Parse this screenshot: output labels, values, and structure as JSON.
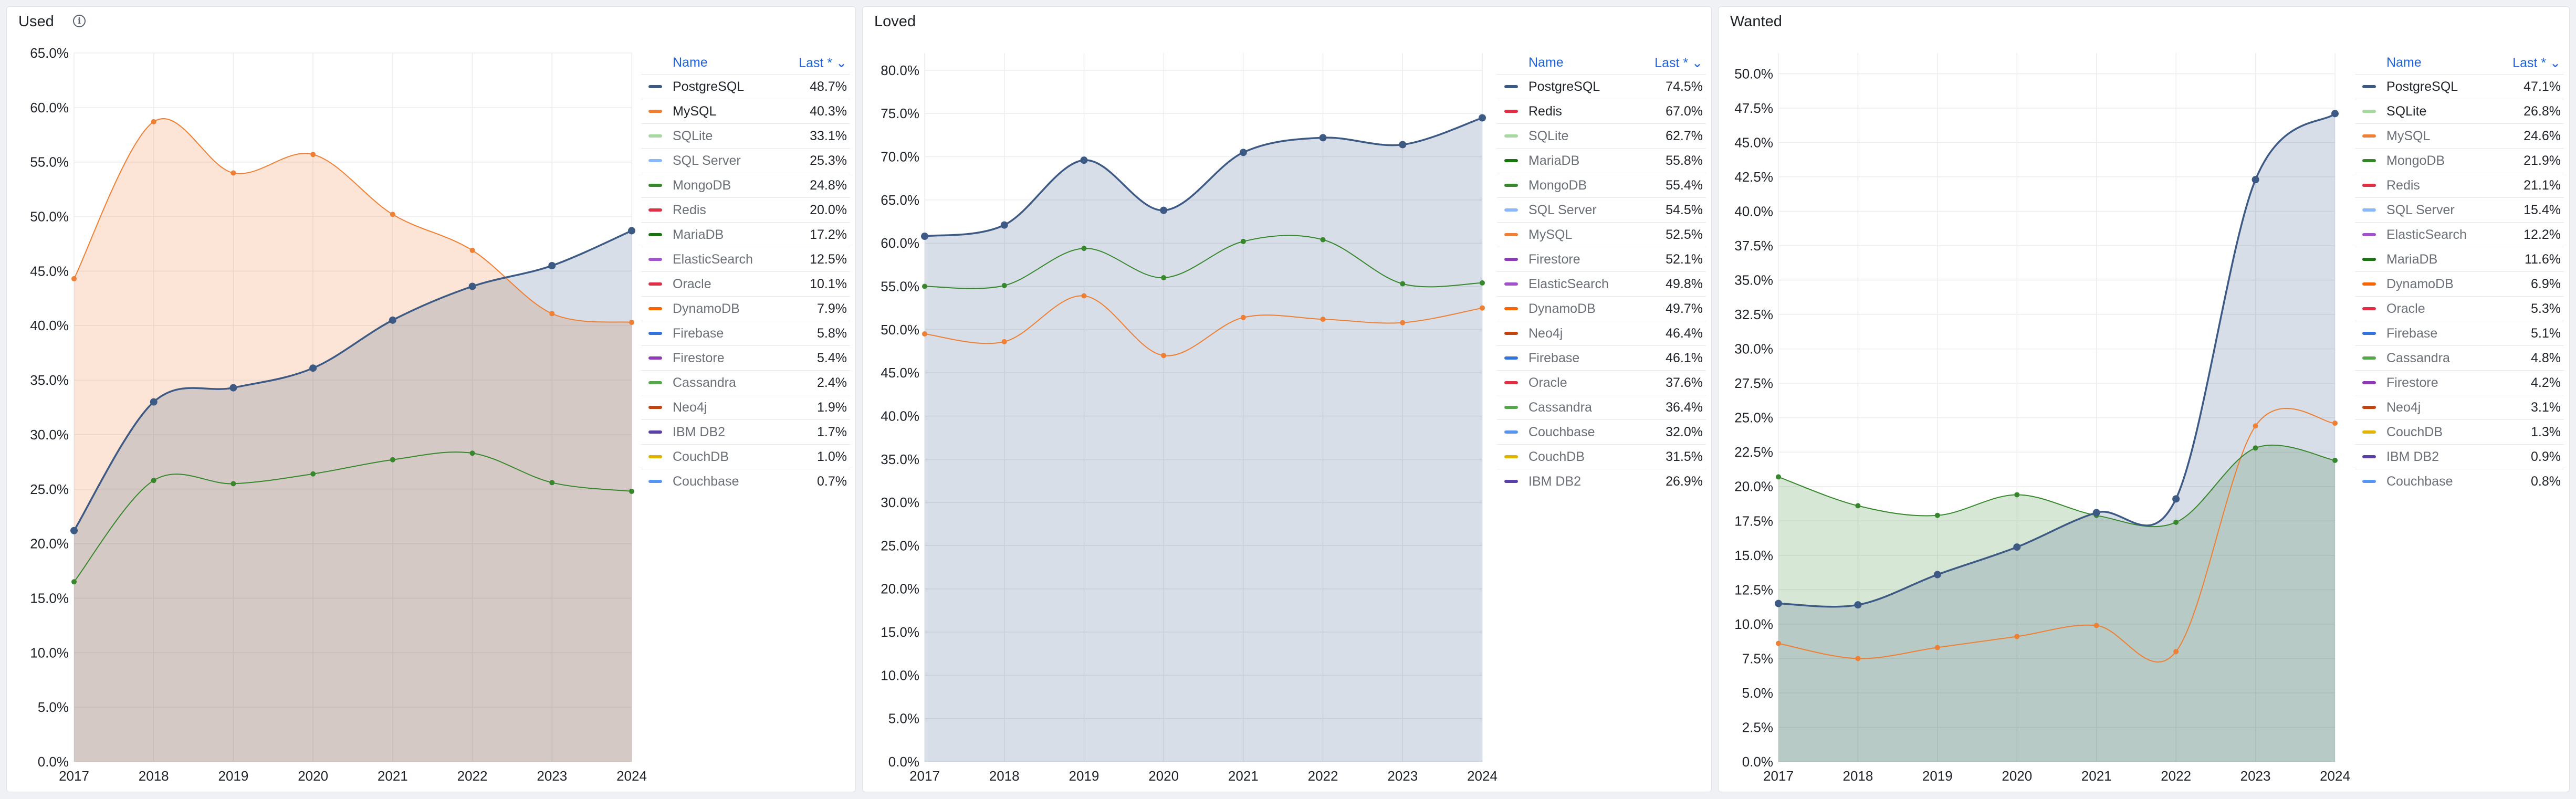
{
  "legend_header": {
    "name": "Name",
    "last": "Last * ⌄"
  },
  "colors": {
    "PostgreSQL": "#3d5a85",
    "MySQL": "#ef7f32",
    "SQLite": "#a6d9a0",
    "SQL Server": "#8ab8ff",
    "MongoDB": "#37872d",
    "Redis": "#e02f44",
    "MariaDB": "#19730e",
    "ElasticSearch": "#a352cc",
    "Oracle": "#e02f44",
    "DynamoDB": "#fa6400",
    "Firebase": "#3274d9",
    "Firestore": "#8f3bb8",
    "Cassandra": "#56a64b",
    "Neo4j": "#c4440f",
    "IBM DB2": "#5a3fa6",
    "CouchDB": "#e0b400",
    "Couchbase": "#5794f2"
  },
  "panels": [
    {
      "title": "Used",
      "legend": [
        {
          "name": "PostgreSQL",
          "value": "48.7%"
        },
        {
          "name": "MySQL",
          "value": "40.3%"
        },
        {
          "name": "SQLite",
          "value": "33.1%"
        },
        {
          "name": "SQL Server",
          "value": "25.3%"
        },
        {
          "name": "MongoDB",
          "value": "24.8%"
        },
        {
          "name": "Redis",
          "value": "20.0%"
        },
        {
          "name": "MariaDB",
          "value": "17.2%"
        },
        {
          "name": "ElasticSearch",
          "value": "12.5%"
        },
        {
          "name": "Oracle",
          "value": "10.1%"
        },
        {
          "name": "DynamoDB",
          "value": "7.9%"
        },
        {
          "name": "Firebase",
          "value": "5.8%"
        },
        {
          "name": "Firestore",
          "value": "5.4%"
        },
        {
          "name": "Cassandra",
          "value": "2.4%"
        },
        {
          "name": "Neo4j",
          "value": "1.9%"
        },
        {
          "name": "IBM DB2",
          "value": "1.7%"
        },
        {
          "name": "CouchDB",
          "value": "1.0%"
        },
        {
          "name": "Couchbase",
          "value": "0.7%"
        }
      ]
    },
    {
      "title": "Loved",
      "legend": [
        {
          "name": "PostgreSQL",
          "value": "74.5%"
        },
        {
          "name": "Redis",
          "value": "67.0%"
        },
        {
          "name": "SQLite",
          "value": "62.7%"
        },
        {
          "name": "MariaDB",
          "value": "55.8%"
        },
        {
          "name": "MongoDB",
          "value": "55.4%"
        },
        {
          "name": "SQL Server",
          "value": "54.5%"
        },
        {
          "name": "MySQL",
          "value": "52.5%"
        },
        {
          "name": "Firestore",
          "value": "52.1%"
        },
        {
          "name": "ElasticSearch",
          "value": "49.8%"
        },
        {
          "name": "DynamoDB",
          "value": "49.7%"
        },
        {
          "name": "Neo4j",
          "value": "46.4%"
        },
        {
          "name": "Firebase",
          "value": "46.1%"
        },
        {
          "name": "Oracle",
          "value": "37.6%"
        },
        {
          "name": "Cassandra",
          "value": "36.4%"
        },
        {
          "name": "Couchbase",
          "value": "32.0%"
        },
        {
          "name": "CouchDB",
          "value": "31.5%"
        },
        {
          "name": "IBM DB2",
          "value": "26.9%"
        }
      ]
    },
    {
      "title": "Wanted",
      "legend": [
        {
          "name": "PostgreSQL",
          "value": "47.1%"
        },
        {
          "name": "SQLite",
          "value": "26.8%"
        },
        {
          "name": "MySQL",
          "value": "24.6%"
        },
        {
          "name": "MongoDB",
          "value": "21.9%"
        },
        {
          "name": "Redis",
          "value": "21.1%"
        },
        {
          "name": "SQL Server",
          "value": "15.4%"
        },
        {
          "name": "ElasticSearch",
          "value": "12.2%"
        },
        {
          "name": "MariaDB",
          "value": "11.6%"
        },
        {
          "name": "DynamoDB",
          "value": "6.9%"
        },
        {
          "name": "Oracle",
          "value": "5.3%"
        },
        {
          "name": "Firebase",
          "value": "5.1%"
        },
        {
          "name": "Cassandra",
          "value": "4.8%"
        },
        {
          "name": "Firestore",
          "value": "4.2%"
        },
        {
          "name": "Neo4j",
          "value": "3.1%"
        },
        {
          "name": "CouchDB",
          "value": "1.3%"
        },
        {
          "name": "IBM DB2",
          "value": "0.9%"
        },
        {
          "name": "Couchbase",
          "value": "0.8%"
        }
      ]
    }
  ],
  "chart_data": [
    {
      "type": "area",
      "title": "Used",
      "x": [
        2017,
        2018,
        2019,
        2020,
        2021,
        2022,
        2023,
        2024
      ],
      "ylim": [
        0,
        65
      ],
      "ytick_step": 5,
      "ytick_labels": [
        "0.0%",
        "5.0%",
        "10.0%",
        "15.0%",
        "20.0%",
        "25.0%",
        "30.0%",
        "35.0%",
        "40.0%",
        "45.0%",
        "50.0%",
        "55.0%",
        "60.0%",
        "65.0%"
      ],
      "xtick_labels": [
        "2017",
        "2018",
        "2019",
        "2020",
        "2021",
        "2022",
        "2023",
        "2024"
      ],
      "series": [
        {
          "name": "PostgreSQL",
          "values": [
            21.2,
            33.0,
            34.3,
            36.1,
            40.5,
            43.6,
            45.5,
            48.7
          ],
          "fill": true
        },
        {
          "name": "MySQL",
          "values": [
            44.3,
            58.7,
            54.0,
            55.7,
            50.2,
            46.9,
            41.1,
            40.3
          ],
          "fill": true
        },
        {
          "name": "MongoDB",
          "values": [
            16.5,
            25.8,
            25.5,
            26.4,
            27.7,
            28.3,
            25.6,
            24.8
          ],
          "fill": false
        }
      ]
    },
    {
      "type": "area",
      "title": "Loved",
      "x": [
        2017,
        2018,
        2019,
        2020,
        2021,
        2022,
        2023,
        2024
      ],
      "ylim": [
        0,
        82
      ],
      "ytick_step": 5,
      "ytick_labels": [
        "0.0%",
        "5.0%",
        "10.0%",
        "15.0%",
        "20.0%",
        "25.0%",
        "30.0%",
        "35.0%",
        "40.0%",
        "45.0%",
        "50.0%",
        "55.0%",
        "60.0%",
        "65.0%",
        "70.0%",
        "75.0%",
        "80.0%"
      ],
      "xtick_labels": [
        "2017",
        "2018",
        "2019",
        "2020",
        "2021",
        "2022",
        "2023",
        "2024"
      ],
      "series": [
        {
          "name": "PostgreSQL",
          "values": [
            60.8,
            62.1,
            69.6,
            63.8,
            70.5,
            72.2,
            71.4,
            74.5
          ],
          "fill": true
        },
        {
          "name": "MongoDB",
          "values": [
            55.0,
            55.1,
            59.4,
            56.0,
            60.2,
            60.4,
            55.3,
            55.4
          ],
          "fill": false
        },
        {
          "name": "MySQL",
          "values": [
            49.5,
            48.6,
            53.9,
            47.0,
            51.4,
            51.2,
            50.8,
            52.5
          ],
          "fill": false
        }
      ]
    },
    {
      "type": "area",
      "title": "Wanted",
      "x": [
        2017,
        2018,
        2019,
        2020,
        2021,
        2022,
        2023,
        2024
      ],
      "ylim": [
        0,
        51.5
      ],
      "ytick_step": 2.5,
      "ytick_labels": [
        "0.0%",
        "2.5%",
        "5.0%",
        "7.5%",
        "10.0%",
        "12.5%",
        "15.0%",
        "17.5%",
        "20.0%",
        "22.5%",
        "25.0%",
        "27.5%",
        "30.0%",
        "32.5%",
        "35.0%",
        "37.5%",
        "40.0%",
        "42.5%",
        "45.0%",
        "47.5%",
        "50.0%"
      ],
      "xtick_labels": [
        "2017",
        "2018",
        "2019",
        "2020",
        "2021",
        "2022",
        "2023",
        "2024"
      ],
      "series": [
        {
          "name": "PostgreSQL",
          "values": [
            11.5,
            11.4,
            13.6,
            15.6,
            18.1,
            19.1,
            42.3,
            47.1
          ],
          "fill": true
        },
        {
          "name": "MongoDB",
          "values": [
            20.7,
            18.6,
            17.9,
            19.4,
            17.9,
            17.4,
            22.8,
            21.9
          ],
          "fill": true
        },
        {
          "name": "MySQL",
          "values": [
            8.6,
            7.5,
            8.3,
            9.1,
            9.9,
            8.0,
            24.4,
            24.6
          ],
          "fill": false
        }
      ]
    }
  ]
}
